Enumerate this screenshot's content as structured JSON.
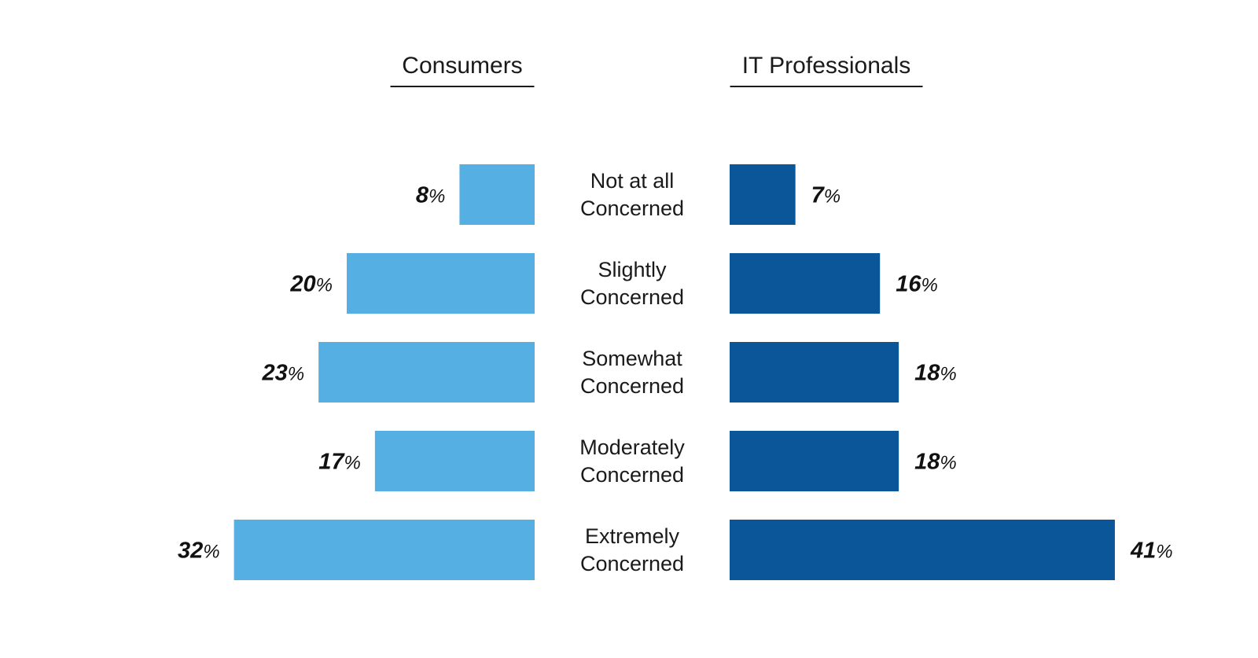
{
  "chart_data": {
    "type": "bar",
    "orientation": "horizontal",
    "layout": "back-to-back",
    "categories": [
      [
        "Not at all",
        "Concerned"
      ],
      [
        "Slightly",
        "Concerned"
      ],
      [
        "Somewhat",
        "Concerned"
      ],
      [
        "Moderately",
        "Concerned"
      ],
      [
        "Extremely",
        "Concerned"
      ]
    ],
    "series": [
      {
        "name": "Consumers",
        "values": [
          8,
          20,
          23,
          17,
          32
        ],
        "color": "#56afe2",
        "side": "left"
      },
      {
        "name": "IT Professionals",
        "values": [
          7,
          16,
          18,
          18,
          41
        ],
        "color": "#0a5699",
        "side": "right"
      }
    ],
    "value_suffix": "%",
    "grid": false,
    "legend": "series titles above each side"
  }
}
